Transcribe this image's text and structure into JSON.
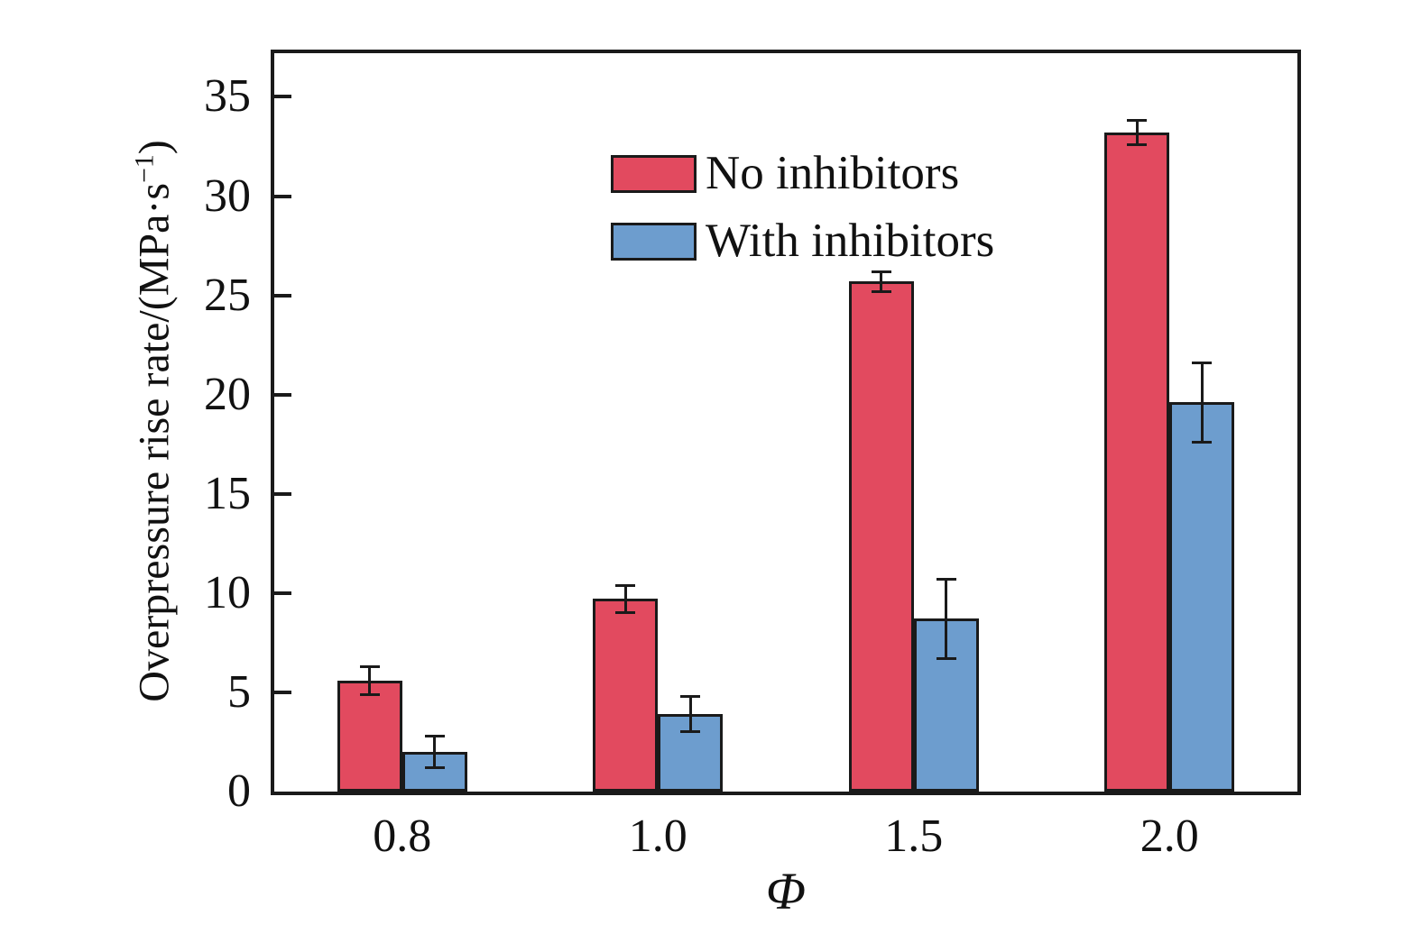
{
  "chart_data": {
    "type": "bar",
    "title": "",
    "categories": [
      "0.8",
      "1.0",
      "1.5",
      "2.0"
    ],
    "series": [
      {
        "name": "No inhibitors",
        "color": "#e24a5f",
        "values": [
          5.6,
          9.7,
          25.7,
          33.2
        ],
        "errors": [
          0.7,
          0.7,
          0.5,
          0.6
        ]
      },
      {
        "name": "With inhibitors",
        "color": "#6d9dce",
        "values": [
          2.0,
          3.9,
          8.7,
          19.6
        ],
        "errors": [
          0.8,
          0.9,
          2.0,
          2.0
        ]
      }
    ],
    "xlabel": "Φ",
    "ylabel": "Overpressure rise rate/(MPa·s⁻¹)",
    "ylabel_parts": {
      "main": "Overpressure rise rate/(MPa·s",
      "sup": "−1",
      "close": ")"
    },
    "ylim": [
      0,
      37.2
    ],
    "yticks": [
      0,
      5,
      10,
      15,
      20,
      25,
      30,
      35
    ],
    "grid": false,
    "error_bars": true,
    "legend_position": "top-left",
    "axis_color": "#1a1a1a",
    "background": "#ffffff"
  }
}
